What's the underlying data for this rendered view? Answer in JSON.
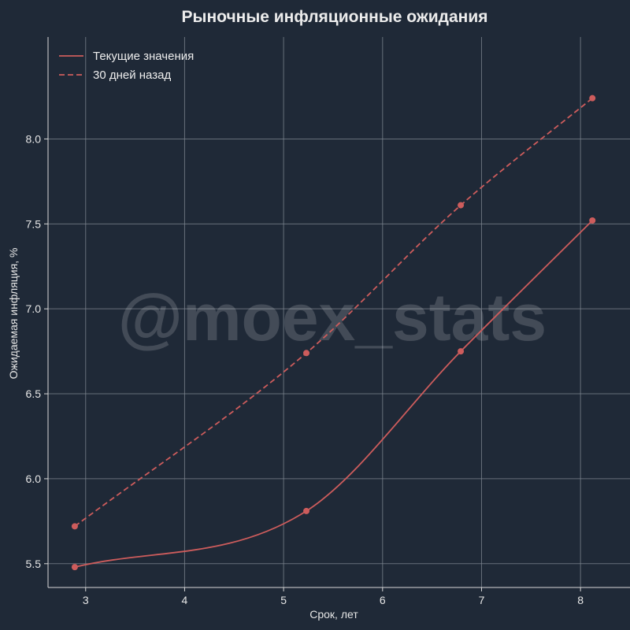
{
  "chart_data": {
    "type": "line",
    "title": "Рыночные инфляционные ожидания",
    "xlabel": "Срок, лет",
    "ylabel": "Ожидаемая инфляция, %",
    "xlim": [
      2.62,
      8.5
    ],
    "ylim": [
      5.36,
      8.6
    ],
    "xticks": [
      3,
      4,
      5,
      6,
      7,
      8
    ],
    "yticks": [
      5.5,
      6.0,
      6.5,
      7.0,
      7.5,
      8.0
    ],
    "xtick_labels": [
      "3",
      "4",
      "5",
      "6",
      "7",
      "8"
    ],
    "ytick_labels": [
      "5.5",
      "6.0",
      "6.5",
      "7.0",
      "7.5",
      "8.0"
    ],
    "grid": true,
    "legend_position": "top-left",
    "watermark": "@moex_stats",
    "series": [
      {
        "name": "Текущие значения",
        "style": "solid",
        "color": "#cd5c5c",
        "x": [
          2.89,
          5.23,
          6.79,
          8.12
        ],
        "y": [
          5.48,
          5.81,
          6.75,
          7.52
        ]
      },
      {
        "name": "30 дней назад",
        "style": "dashed",
        "color": "#cd5c5c",
        "x": [
          2.89,
          5.23,
          6.79,
          8.12
        ],
        "y": [
          5.72,
          6.74,
          7.61,
          8.24
        ]
      }
    ]
  }
}
